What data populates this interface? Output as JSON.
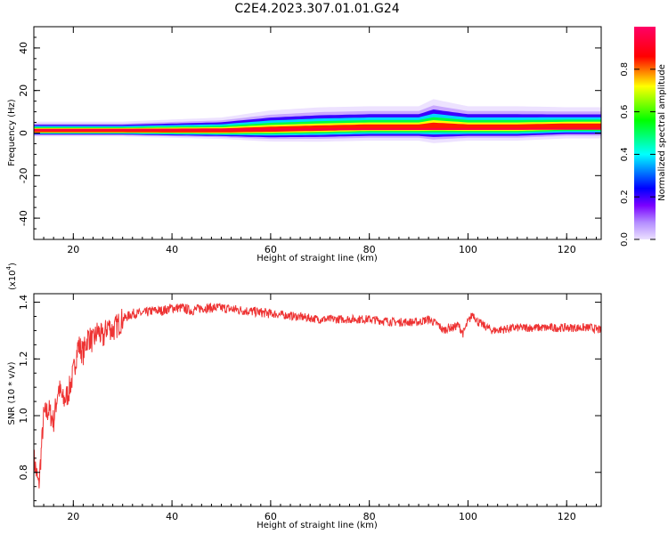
{
  "page_title": "C2E4.2023.307.01.01.G24",
  "chart_data": [
    {
      "type": "heatmap",
      "title": "",
      "xlabel": "Height of straight line (km)",
      "ylabel": "Frequency (Hz)",
      "xlim": [
        12,
        127
      ],
      "ylim": [
        -50,
        50
      ],
      "xticks": [
        20,
        40,
        60,
        80,
        100,
        120
      ],
      "yticks": [
        40,
        20,
        0,
        -20,
        -40
      ],
      "colorbar": {
        "label": "Normalized spectral amplitude",
        "range": [
          0.0,
          1.0
        ],
        "ticks": [
          "0.0",
          "0.2",
          "0.4",
          "0.6",
          "0.8"
        ],
        "colormap": [
          "#ece0ff",
          "#7a00ff",
          "#0000ff",
          "#00ffff",
          "#00ff00",
          "#ffff00",
          "#ff0000",
          "#ff0066"
        ]
      },
      "spectral_band": {
        "center_frequency_hz": 1.5,
        "x": [
          12,
          20,
          30,
          40,
          50,
          60,
          70,
          80,
          90,
          93,
          100,
          110,
          120,
          127
        ],
        "half_width_hz": [
          2,
          2,
          2,
          2.5,
          3,
          4.5,
          5,
          5,
          5,
          6.5,
          5,
          5,
          4.5,
          4.5
        ],
        "center_frequency_track_hz": [
          1,
          1,
          1,
          1,
          1,
          1.5,
          2,
          2.5,
          2.5,
          3,
          2.5,
          2.5,
          3,
          3
        ]
      }
    },
    {
      "type": "line",
      "title": "",
      "xlabel": "Height of straight line (km)",
      "ylabel": "SNR (10 * v/v)",
      "scale_label": "(x10^4)",
      "scale_base": "(x10",
      "scale_exp": "4",
      "scale_close": ")",
      "xlim": [
        12,
        127
      ],
      "ylim": [
        0.68,
        1.43
      ],
      "xticks": [
        20,
        40,
        60,
        80,
        100,
        120
      ],
      "yticks": [
        "0.8",
        "1.0",
        "1.2",
        "1.4"
      ],
      "series": [
        {
          "name": "",
          "color": "#ee3333",
          "x": [
            12,
            13,
            14,
            15,
            16,
            17,
            18,
            19,
            20,
            21,
            22,
            23,
            24,
            25,
            26,
            27,
            28,
            30,
            32,
            34,
            36,
            38,
            40,
            42,
            44,
            46,
            48,
            50,
            55,
            60,
            65,
            70,
            75,
            80,
            85,
            90,
            92,
            94,
            95,
            96,
            97,
            98,
            99,
            100,
            101,
            102,
            103,
            105,
            110,
            115,
            120,
            125,
            127
          ],
          "y": [
            0.85,
            0.75,
            1.0,
            1.02,
            0.98,
            1.1,
            1.05,
            1.08,
            1.15,
            1.25,
            1.22,
            1.28,
            1.26,
            1.3,
            1.27,
            1.32,
            1.3,
            1.34,
            1.36,
            1.36,
            1.37,
            1.37,
            1.38,
            1.38,
            1.37,
            1.38,
            1.38,
            1.38,
            1.37,
            1.36,
            1.35,
            1.34,
            1.34,
            1.34,
            1.33,
            1.33,
            1.34,
            1.32,
            1.3,
            1.31,
            1.31,
            1.32,
            1.29,
            1.33,
            1.36,
            1.33,
            1.32,
            1.3,
            1.31,
            1.31,
            1.31,
            1.31,
            1.3
          ]
        }
      ]
    }
  ]
}
